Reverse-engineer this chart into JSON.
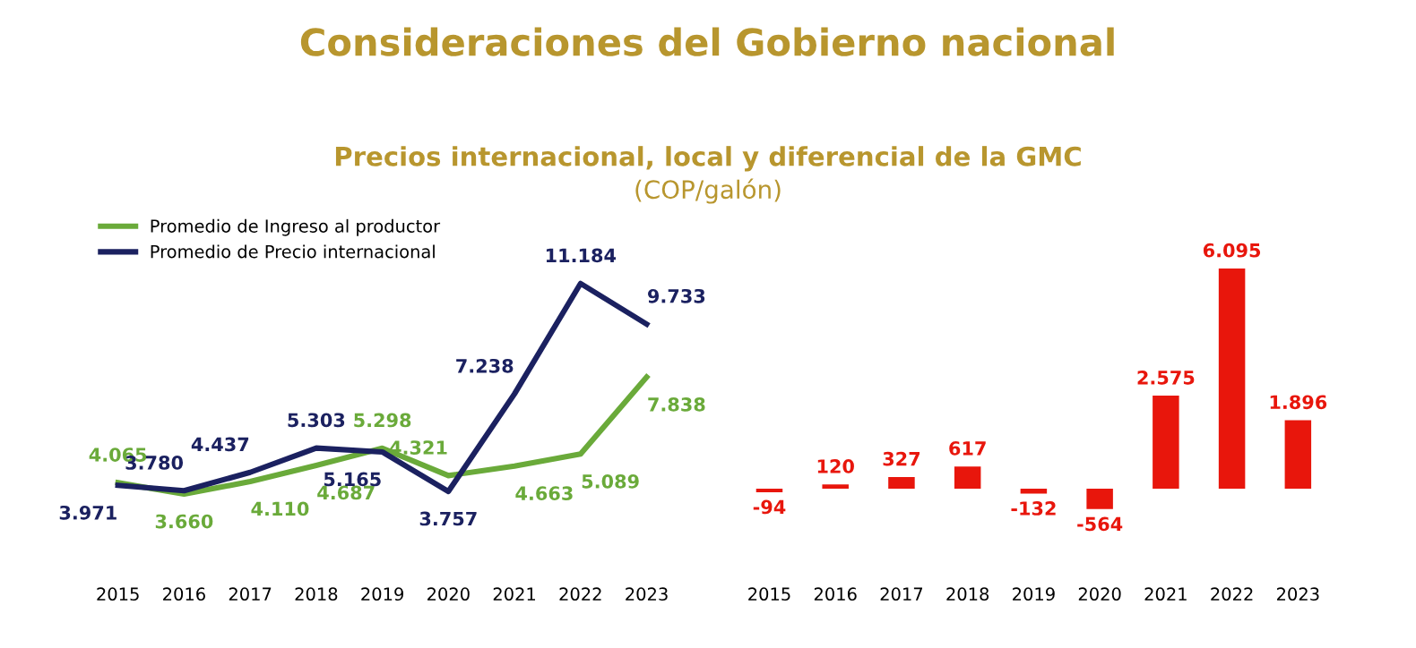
{
  "chart_data": [
    {
      "type": "line",
      "title": "Consideraciones del Gobierno nacional",
      "subtitle": "Precios internacional, local y diferencial de la GMC",
      "annotations": [
        "(COP/galón)"
      ],
      "categories": [
        "2015",
        "2016",
        "2017",
        "2018",
        "2019",
        "2020",
        "2021",
        "2022",
        "2023"
      ],
      "series": [
        {
          "name": "Promedio de Ingreso al productor",
          "color": "#6aaa3a",
          "values": [
            4065,
            3660,
            4110,
            4687,
            5298,
            4321,
            4663,
            5089,
            7838
          ],
          "value_labels": [
            "4.065",
            "3.660",
            "4.110",
            "4.687",
            "5.298",
            "4.321",
            "4.663",
            "5.089",
            "7.838"
          ]
        },
        {
          "name": "Promedio de Precio internacional",
          "color": "#1b2160",
          "values": [
            3971,
            3780,
            4437,
            5303,
            5165,
            3757,
            7238,
            11184,
            9733
          ],
          "value_labels": [
            "3.971",
            "3.780",
            "4.437",
            "5.303",
            "5.165",
            "3.757",
            "7.238",
            "11.184",
            "9.733"
          ]
        }
      ],
      "legend": "top left",
      "marker": "none",
      "line_style": "solid",
      "tick_labels": "x",
      "grid": false
    },
    {
      "type": "bar",
      "categories": [
        "2015",
        "2016",
        "2017",
        "2018",
        "2019",
        "2020",
        "2021",
        "2022",
        "2023"
      ],
      "series": [
        {
          "color": "#e8160c",
          "values": [
            -94,
            120,
            327,
            617,
            -132,
            -564,
            2575,
            6095,
            1896
          ],
          "value_labels": [
            "-94",
            "120",
            "327",
            "617",
            "-132",
            "-564",
            "2.575",
            "6.095",
            "1.896"
          ]
        }
      ],
      "tick_labels": "x",
      "grid": false
    }
  ]
}
